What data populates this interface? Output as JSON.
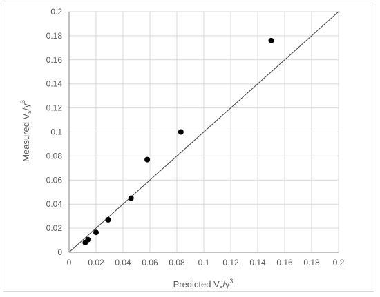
{
  "chart_data": {
    "type": "scatter",
    "title": "",
    "xlabel": {
      "main": "Predicted V",
      "sub": "s",
      "rest": "/γ",
      "sup": "3"
    },
    "ylabel": {
      "main": "Measured V",
      "sub": "s",
      "rest": "/γ",
      "sup": "3"
    },
    "xlim": [
      0,
      0.2
    ],
    "ylim": [
      0,
      0.2
    ],
    "xticks": [
      "0",
      "0.02",
      "0.04",
      "0.06",
      "0.08",
      "0.1",
      "0.12",
      "0.14",
      "0.16",
      "0.18",
      "0.2"
    ],
    "yticks": [
      "0",
      "0.02",
      "0.04",
      "0.06",
      "0.08",
      "0.1",
      "0.12",
      "0.14",
      "0.16",
      "0.18",
      "0.2"
    ],
    "grid": true,
    "reference_line": "y = x",
    "series": [
      {
        "points": [
          {
            "x": 0.012,
            "y": 0.008
          },
          {
            "x": 0.014,
            "y": 0.0105
          },
          {
            "x": 0.02,
            "y": 0.0165
          },
          {
            "x": 0.029,
            "y": 0.027
          },
          {
            "x": 0.046,
            "y": 0.045
          },
          {
            "x": 0.058,
            "y": 0.077
          },
          {
            "x": 0.083,
            "y": 0.1
          },
          {
            "x": 0.15,
            "y": 0.176
          }
        ]
      }
    ],
    "colors": {
      "marker": "#000000",
      "reference_line": "#404040",
      "grid": "#d9d9d9",
      "axis": "#808080",
      "text": "#595959"
    }
  }
}
